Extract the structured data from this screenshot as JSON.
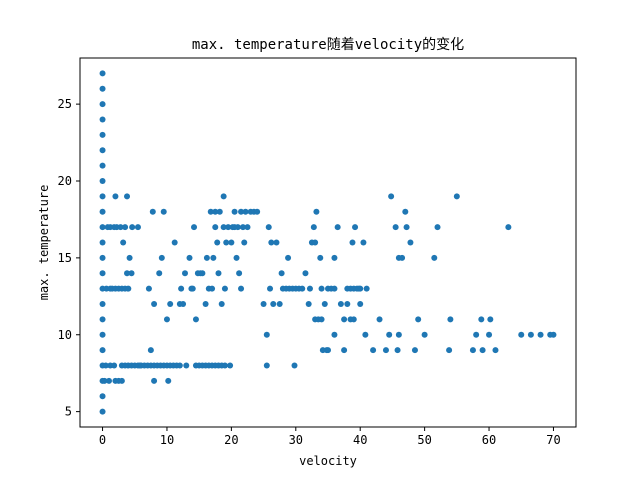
{
  "chart_data": {
    "type": "scatter",
    "title": "max. temperature随着velocity的变化",
    "xlabel": "velocity",
    "ylabel": "max. temperature",
    "xlim": [
      -3.5,
      73.5
    ],
    "ylim": [
      4.0,
      28.0
    ],
    "xticks": [
      0,
      10,
      20,
      30,
      40,
      50,
      60,
      70
    ],
    "yticks": [
      5,
      10,
      15,
      20,
      25
    ],
    "grid": false,
    "marker_color": "#1f77b4",
    "series": [
      {
        "points": [
          [
            0,
            5
          ],
          [
            0,
            6
          ],
          [
            0,
            7
          ],
          [
            0,
            8
          ],
          [
            0,
            9
          ],
          [
            0,
            10
          ],
          [
            0,
            11
          ],
          [
            0,
            12
          ],
          [
            0,
            13
          ],
          [
            0,
            14
          ],
          [
            0,
            15
          ],
          [
            0,
            16
          ],
          [
            0,
            17
          ],
          [
            0,
            18
          ],
          [
            0,
            19
          ],
          [
            0,
            20
          ],
          [
            0,
            21
          ],
          [
            0,
            22
          ],
          [
            0,
            23
          ],
          [
            0,
            24
          ],
          [
            0,
            25
          ],
          [
            0,
            26
          ],
          [
            0,
            27
          ],
          [
            0.3,
            7
          ],
          [
            0.5,
            8
          ],
          [
            0.6,
            13
          ],
          [
            0.8,
            17
          ],
          [
            1,
            7
          ],
          [
            1.2,
            8
          ],
          [
            1.2,
            13
          ],
          [
            1.2,
            17
          ],
          [
            1.5,
            13
          ],
          [
            1.8,
            8
          ],
          [
            1.8,
            17
          ],
          [
            2,
            7
          ],
          [
            2,
            13
          ],
          [
            2,
            19
          ],
          [
            2.2,
            17
          ],
          [
            2.5,
            7
          ],
          [
            2.5,
            13
          ],
          [
            2.8,
            17
          ],
          [
            3,
            7
          ],
          [
            3,
            8
          ],
          [
            3,
            13
          ],
          [
            3.2,
            16
          ],
          [
            3.5,
            8
          ],
          [
            3.5,
            13
          ],
          [
            3.5,
            17
          ],
          [
            3.8,
            14
          ],
          [
            3.8,
            19
          ],
          [
            4,
            8
          ],
          [
            4,
            13
          ],
          [
            4.2,
            15
          ],
          [
            4.5,
            8
          ],
          [
            4.5,
            14
          ],
          [
            4.6,
            17
          ],
          [
            5,
            8
          ],
          [
            5.5,
            8
          ],
          [
            5.5,
            17
          ],
          [
            5.8,
            8
          ],
          [
            6,
            8
          ],
          [
            6.5,
            8
          ],
          [
            7,
            8
          ],
          [
            7.2,
            13
          ],
          [
            7.5,
            8
          ],
          [
            7.5,
            9
          ],
          [
            7.8,
            18
          ],
          [
            8,
            7
          ],
          [
            8,
            8
          ],
          [
            8,
            12
          ],
          [
            8.5,
            8
          ],
          [
            8.8,
            14
          ],
          [
            9,
            8
          ],
          [
            9.2,
            15
          ],
          [
            9.5,
            8
          ],
          [
            9.5,
            18
          ],
          [
            10,
            8
          ],
          [
            10,
            11
          ],
          [
            10.2,
            7
          ],
          [
            10.5,
            8
          ],
          [
            10.5,
            12
          ],
          [
            11,
            8
          ],
          [
            11.2,
            16
          ],
          [
            11.5,
            8
          ],
          [
            12,
            8
          ],
          [
            12,
            12
          ],
          [
            12.2,
            13
          ],
          [
            12.5,
            12
          ],
          [
            12.8,
            14
          ],
          [
            13,
            8
          ],
          [
            13.5,
            15
          ],
          [
            13.8,
            13
          ],
          [
            14,
            13
          ],
          [
            14.2,
            17
          ],
          [
            14.5,
            8
          ],
          [
            14.5,
            11
          ],
          [
            14.8,
            14
          ],
          [
            15,
            8
          ],
          [
            15.2,
            14
          ],
          [
            15.5,
            8
          ],
          [
            15.5,
            14
          ],
          [
            16,
            8
          ],
          [
            16,
            12
          ],
          [
            16.2,
            15
          ],
          [
            16.5,
            8
          ],
          [
            16.5,
            13
          ],
          [
            16.8,
            18
          ],
          [
            17,
            8
          ],
          [
            17,
            13
          ],
          [
            17.2,
            15
          ],
          [
            17.5,
            8
          ],
          [
            17.5,
            17
          ],
          [
            17.5,
            18
          ],
          [
            17.8,
            16
          ],
          [
            18,
            8
          ],
          [
            18,
            14
          ],
          [
            18.2,
            18
          ],
          [
            18.5,
            8
          ],
          [
            18.5,
            12
          ],
          [
            18.8,
            17
          ],
          [
            18.8,
            19
          ],
          [
            19,
            8
          ],
          [
            19,
            13
          ],
          [
            19.2,
            16
          ],
          [
            19.5,
            17
          ],
          [
            19.8,
            8
          ],
          [
            20,
            16
          ],
          [
            20.2,
            17
          ],
          [
            20.5,
            17
          ],
          [
            20.5,
            18
          ],
          [
            20.8,
            15
          ],
          [
            21,
            17
          ],
          [
            21.2,
            14
          ],
          [
            21.5,
            13
          ],
          [
            21.5,
            18
          ],
          [
            21.8,
            17
          ],
          [
            22,
            16
          ],
          [
            22.2,
            18
          ],
          [
            22.5,
            17
          ],
          [
            23,
            18
          ],
          [
            23.5,
            18
          ],
          [
            24,
            18
          ],
          [
            25,
            12
          ],
          [
            25.5,
            8
          ],
          [
            25.5,
            10
          ],
          [
            25.8,
            17
          ],
          [
            26,
            13
          ],
          [
            26.2,
            16
          ],
          [
            26.5,
            12
          ],
          [
            27,
            16
          ],
          [
            27.5,
            12
          ],
          [
            27.8,
            14
          ],
          [
            28,
            13
          ],
          [
            28.5,
            13
          ],
          [
            28.8,
            15
          ],
          [
            29,
            13
          ],
          [
            29.5,
            13
          ],
          [
            29.8,
            8
          ],
          [
            30,
            13
          ],
          [
            30.5,
            13
          ],
          [
            31,
            13
          ],
          [
            31.5,
            14
          ],
          [
            32,
            12
          ],
          [
            32.2,
            13
          ],
          [
            32.5,
            16
          ],
          [
            32.8,
            17
          ],
          [
            33,
            11
          ],
          [
            33,
            16
          ],
          [
            33.2,
            18
          ],
          [
            33.5,
            11
          ],
          [
            33.8,
            15
          ],
          [
            34,
            11
          ],
          [
            34,
            13
          ],
          [
            34.2,
            9
          ],
          [
            34.5,
            12
          ],
          [
            34.8,
            9
          ],
          [
            35,
            9
          ],
          [
            35,
            13
          ],
          [
            35.5,
            13
          ],
          [
            36,
            13
          ],
          [
            36,
            10
          ],
          [
            36,
            15
          ],
          [
            36.5,
            17
          ],
          [
            37,
            12
          ],
          [
            37.5,
            9
          ],
          [
            37.5,
            11
          ],
          [
            38,
            13
          ],
          [
            38,
            12
          ],
          [
            38.5,
            11
          ],
          [
            38.5,
            13
          ],
          [
            38.8,
            16
          ],
          [
            39,
            11
          ],
          [
            39,
            13
          ],
          [
            39.2,
            17
          ],
          [
            39.5,
            13
          ],
          [
            39.8,
            13
          ],
          [
            40,
            13
          ],
          [
            40,
            12
          ],
          [
            40.5,
            16
          ],
          [
            40.8,
            10
          ],
          [
            41,
            13
          ],
          [
            42,
            9
          ],
          [
            43,
            11
          ],
          [
            44,
            9
          ],
          [
            44.5,
            10
          ],
          [
            44.8,
            19
          ],
          [
            45.5,
            17
          ],
          [
            45.8,
            9
          ],
          [
            46,
            10
          ],
          [
            46,
            15
          ],
          [
            46.5,
            15
          ],
          [
            47,
            18
          ],
          [
            47.2,
            17
          ],
          [
            47.8,
            16
          ],
          [
            48.5,
            9
          ],
          [
            49,
            11
          ],
          [
            50,
            10
          ],
          [
            51.5,
            15
          ],
          [
            52,
            17
          ],
          [
            53.8,
            9
          ],
          [
            54,
            11
          ],
          [
            55,
            19
          ],
          [
            57.5,
            9
          ],
          [
            58,
            10
          ],
          [
            58.8,
            11
          ],
          [
            59,
            9
          ],
          [
            60,
            10
          ],
          [
            60.2,
            11
          ],
          [
            61,
            9
          ],
          [
            63,
            17
          ],
          [
            65,
            10
          ],
          [
            66.5,
            10
          ],
          [
            68,
            10
          ],
          [
            69.5,
            10
          ],
          [
            70,
            10
          ]
        ]
      }
    ]
  }
}
